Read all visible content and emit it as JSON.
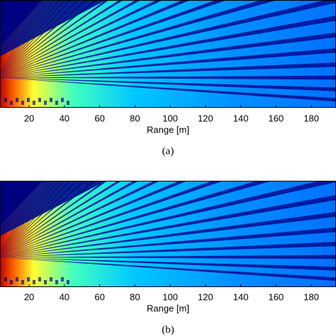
{
  "chart_data": [
    {
      "type": "field",
      "xlabel": "Range [m]",
      "caption": "(a)",
      "xlim": [
        3.5,
        194
      ],
      "xticks": [
        20,
        40,
        60,
        80,
        100,
        120,
        140,
        160,
        180
      ]
    },
    {
      "type": "field",
      "xlabel": "Range [m]",
      "caption": "(b)",
      "xlim": [
        3.5,
        194
      ],
      "xticks": [
        20,
        40,
        60,
        80,
        100,
        120,
        140,
        160,
        180
      ]
    }
  ]
}
